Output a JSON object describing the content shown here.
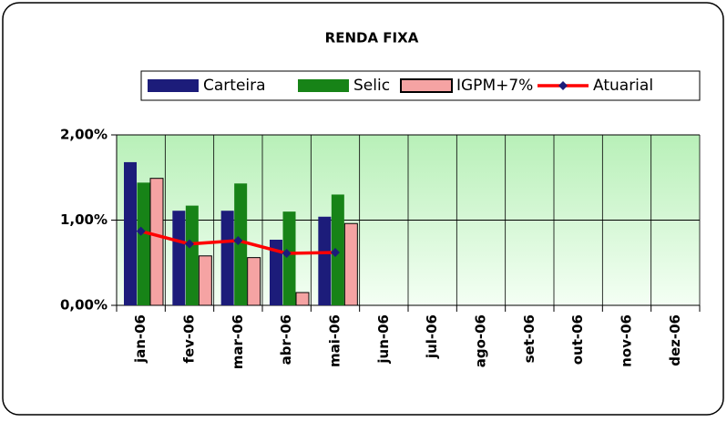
{
  "chart_data": {
    "type": "bar",
    "title": "RENDA FIXA",
    "categories": [
      "jan-06",
      "fev-06",
      "mar-06",
      "abr-06",
      "mai-06",
      "jun-06",
      "jul-06",
      "ago-06",
      "set-06",
      "out-06",
      "nov-06",
      "dez-06"
    ],
    "series": [
      {
        "name": "Carteira",
        "type": "bar",
        "color": "#1c1c7a",
        "values": [
          1.68,
          1.11,
          1.11,
          0.77,
          1.04,
          null,
          null,
          null,
          null,
          null,
          null,
          null
        ]
      },
      {
        "name": "Selic",
        "type": "bar",
        "color": "#178317",
        "values": [
          1.44,
          1.17,
          1.43,
          1.1,
          1.3,
          null,
          null,
          null,
          null,
          null,
          null,
          null
        ]
      },
      {
        "name": "IGPM+7%",
        "type": "bar",
        "color": "#f5a3a3",
        "values": [
          1.49,
          0.58,
          0.56,
          0.15,
          0.96,
          null,
          null,
          null,
          null,
          null,
          null,
          null
        ]
      },
      {
        "name": "Atuarial",
        "type": "line",
        "color": "#ff0000",
        "marker_color": "#1c1c7a",
        "values": [
          0.87,
          0.72,
          0.76,
          0.61,
          0.62,
          null,
          null,
          null,
          null,
          null,
          null,
          null
        ]
      }
    ],
    "ylim": [
      0,
      2
    ],
    "yticks": [
      {
        "value": 0,
        "label": "0,00%"
      },
      {
        "value": 1,
        "label": "1,00%"
      },
      {
        "value": 2,
        "label": "2,00%"
      }
    ],
    "grid": true,
    "legend": "top"
  }
}
